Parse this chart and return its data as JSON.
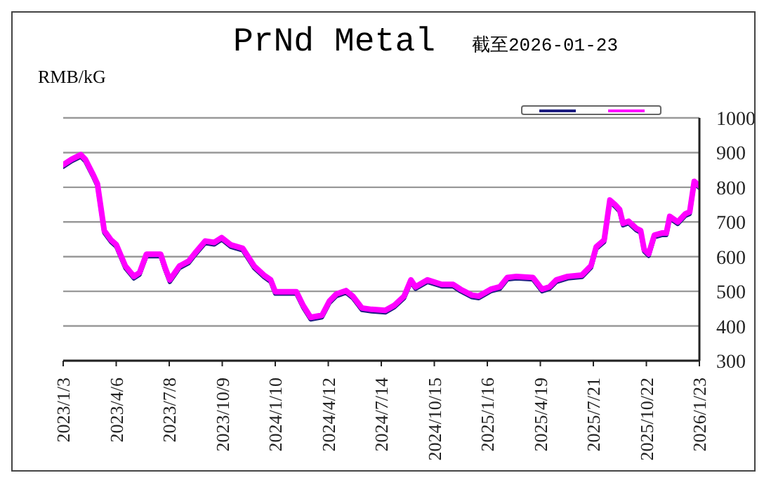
{
  "chart_data": {
    "type": "line",
    "title": "PrNd Metal",
    "subtitle": "截至2026-01-23",
    "ylabel": "RMB/kG",
    "x": [
      "2023-01-03",
      "2023-01-18",
      "2023-02-03",
      "2023-02-11",
      "2023-02-24",
      "2023-03-04",
      "2023-03-16",
      "2023-03-28",
      "2023-04-06",
      "2023-04-22",
      "2023-05-07",
      "2023-05-17",
      "2023-05-29",
      "2023-06-23",
      "2023-07-01",
      "2023-07-09",
      "2023-07-26",
      "2023-08-11",
      "2023-08-24",
      "2023-09-09",
      "2023-09-25",
      "2023-10-08",
      "2023-10-24",
      "2023-11-14",
      "2023-12-04",
      "2023-12-21",
      "2024-01-02",
      "2024-01-10",
      "2024-02-16",
      "2024-02-28",
      "2024-03-12",
      "2024-04-01",
      "2024-04-14",
      "2024-04-26",
      "2024-05-13",
      "2024-05-25",
      "2024-06-10",
      "2024-06-27",
      "2024-07-21",
      "2024-08-06",
      "2024-08-23",
      "2024-09-04",
      "2024-09-12",
      "2024-10-03",
      "2024-10-28",
      "2024-11-17",
      "2024-11-30",
      "2024-12-20",
      "2025-01-01",
      "2025-01-22",
      "2025-02-07",
      "2025-02-20",
      "2025-03-08",
      "2025-04-06",
      "2025-04-22",
      "2025-05-05",
      "2025-05-17",
      "2025-06-06",
      "2025-07-01",
      "2025-07-17",
      "2025-07-26",
      "2025-08-09",
      "2025-08-19",
      "2025-08-28",
      "2025-09-05",
      "2025-09-11",
      "2025-09-21",
      "2025-10-04",
      "2025-10-12",
      "2025-10-18",
      "2025-10-26",
      "2025-11-05",
      "2025-11-18",
      "2025-11-26",
      "2025-12-02",
      "2025-12-16",
      "2025-12-29",
      "2026-01-06",
      "2026-01-14",
      "2026-01-23"
    ],
    "series": [
      {
        "color": "#1c1c80",
        "values": [
          859,
          875,
          888,
          874,
          832,
          804,
          669,
          642,
          629,
          567,
          537,
          548,
          601,
          601,
          561,
          527,
          567,
          581,
          608,
          639,
          635,
          649,
          628,
          618,
          567,
          541,
          527,
          493,
          493,
          453,
          419,
          425,
          466,
          486,
          496,
          480,
          446,
          442,
          439,
          454,
          480,
          527,
          507,
          527,
          514,
          514,
          500,
          483,
          480,
          500,
          507,
          534,
          537,
          534,
          500,
          507,
          527,
          537,
          541,
          568,
          622,
          642,
          757,
          744,
          730,
          690,
          696,
          676,
          669,
          615,
          602,
          656,
          662,
          662,
          710,
          694,
          717,
          723,
          811,
          798
        ]
      },
      {
        "color": "#ff00ff",
        "values": [
          865,
          881,
          894,
          880,
          838,
          810,
          675,
          648,
          635,
          573,
          543,
          554,
          607,
          607,
          567,
          533,
          573,
          587,
          614,
          645,
          641,
          655,
          634,
          624,
          573,
          547,
          533,
          499,
          499,
          459,
          425,
          431,
          472,
          492,
          502,
          486,
          452,
          448,
          445,
          460,
          486,
          533,
          513,
          533,
          520,
          520,
          506,
          489,
          486,
          506,
          513,
          540,
          543,
          540,
          506,
          513,
          533,
          543,
          547,
          574,
          628,
          648,
          763,
          750,
          736,
          696,
          702,
          682,
          675,
          621,
          608,
          662,
          668,
          668,
          716,
          700,
          723,
          729,
          817,
          804
        ]
      }
    ],
    "xlim": [
      "2023-01-03",
      "2026-01-23"
    ],
    "xticks": [
      {
        "value": "2023-01-03",
        "label": "2023/1/3"
      },
      {
        "value": "2023-04-06",
        "label": "2023/4/6"
      },
      {
        "value": "2023-07-08",
        "label": "2023/7/8"
      },
      {
        "value": "2023-10-09",
        "label": "2023/10/9"
      },
      {
        "value": "2024-01-10",
        "label": "2024/1/10"
      },
      {
        "value": "2024-04-12",
        "label": "2024/4/12"
      },
      {
        "value": "2024-07-14",
        "label": "2024/7/14"
      },
      {
        "value": "2024-10-15",
        "label": "2024/10/15"
      },
      {
        "value": "2025-01-16",
        "label": "2025/1/16"
      },
      {
        "value": "2025-04-19",
        "label": "2025/4/19"
      },
      {
        "value": "2025-07-21",
        "label": "2025/7/21"
      },
      {
        "value": "2025-10-22",
        "label": "2025/10/22"
      },
      {
        "value": "2026-01-23",
        "label": "2026/1/23"
      }
    ],
    "ylim": [
      300,
      1000
    ],
    "yticks": [
      300,
      400,
      500,
      600,
      700,
      800,
      900,
      1000
    ],
    "grid": "y"
  }
}
